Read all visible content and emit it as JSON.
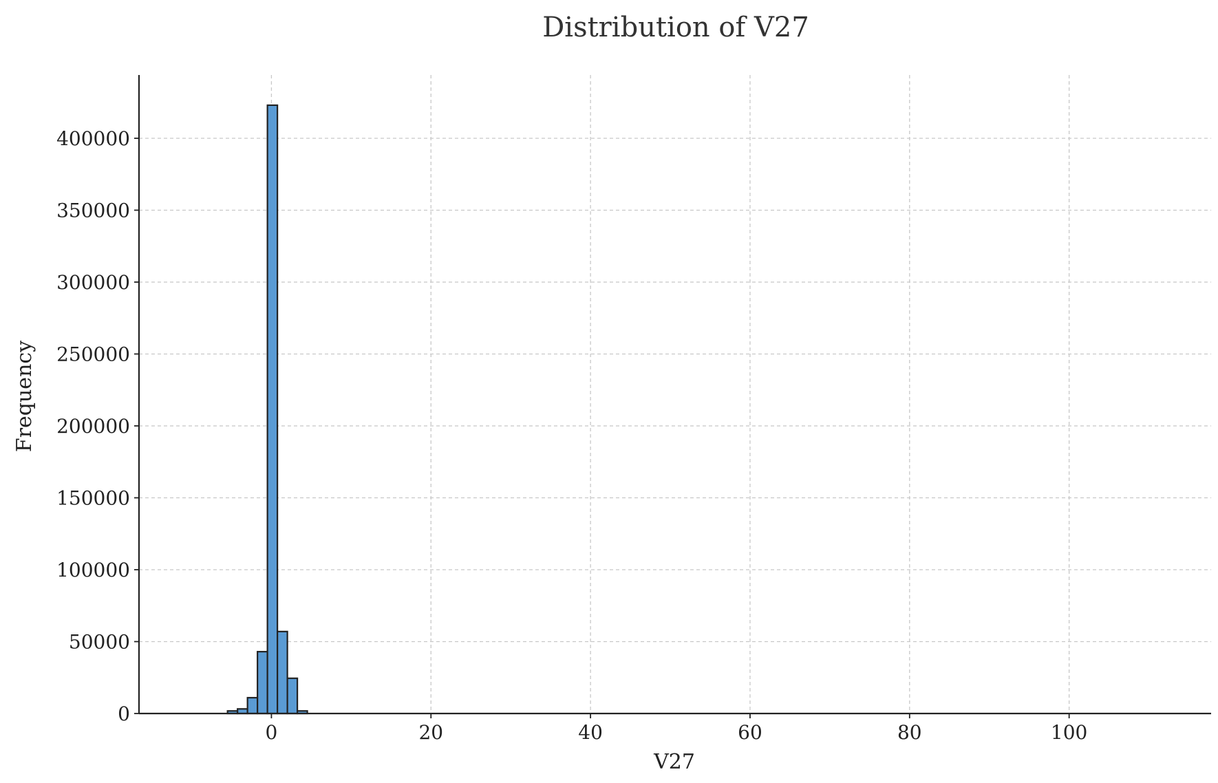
{
  "chart_data": {
    "type": "bar",
    "title": "Distribution of V27",
    "xlabel": "V27",
    "ylabel": "Frequency",
    "xlim": [
      -16.6,
      117.8
    ],
    "ylim": [
      0,
      444000
    ],
    "xticks": [
      0,
      20,
      40,
      60,
      80,
      100
    ],
    "yticks": [
      0,
      50000,
      100000,
      150000,
      200000,
      250000,
      300000,
      350000,
      400000
    ],
    "grid": true,
    "bar_color": "#5a9bd4",
    "edge_color": "#222222",
    "bins": [
      {
        "x0": -5.5,
        "x1": -4.25,
        "count": 1800
      },
      {
        "x0": -4.25,
        "x1": -3.0,
        "count": 3200
      },
      {
        "x0": -3.0,
        "x1": -1.75,
        "count": 11000
      },
      {
        "x0": -1.75,
        "x1": -0.5,
        "count": 43000
      },
      {
        "x0": -0.5,
        "x1": 0.75,
        "count": 423000
      },
      {
        "x0": 0.75,
        "x1": 2.0,
        "count": 57000
      },
      {
        "x0": 2.0,
        "x1": 3.25,
        "count": 24500
      },
      {
        "x0": 3.25,
        "x1": 4.5,
        "count": 1800
      }
    ]
  }
}
